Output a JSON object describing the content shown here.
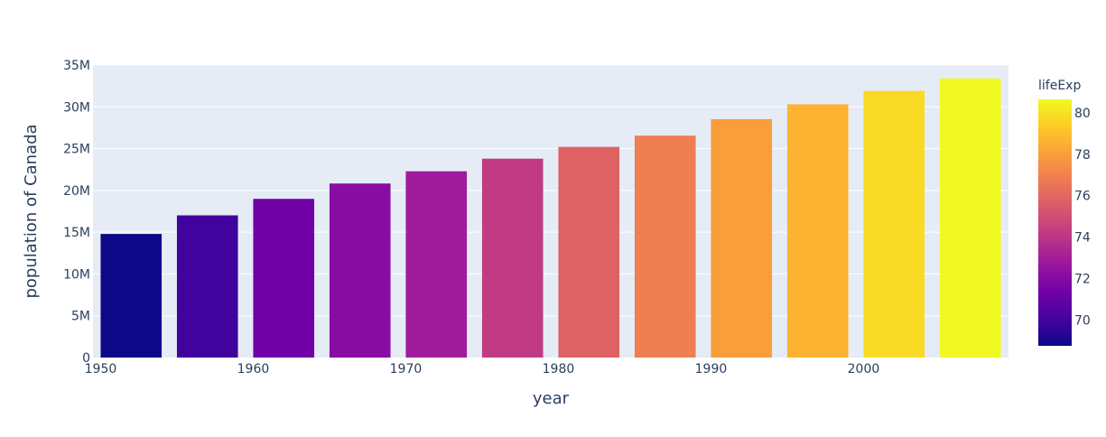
{
  "chart_data": {
    "type": "bar",
    "xlabel": "year",
    "ylabel": "population of Canada",
    "x": [
      1952,
      1957,
      1962,
      1967,
      1972,
      1977,
      1982,
      1987,
      1992,
      1997,
      2002,
      2007
    ],
    "values": [
      14785584,
      17010154,
      18985849,
      20819767,
      22284500,
      23796400,
      25201900,
      26549700,
      28523502,
      30305843,
      31902268,
      33390141
    ],
    "lifeExp": [
      68.75,
      69.96,
      71.3,
      72.13,
      72.88,
      74.21,
      75.76,
      76.86,
      77.95,
      78.61,
      79.77,
      80.653
    ],
    "x_ticks": [
      1950,
      1960,
      1970,
      1980,
      1990,
      2000
    ],
    "x_tick_labels": [
      "1950",
      "1960",
      "1970",
      "1980",
      "1990",
      "2000"
    ],
    "xlim": [
      1949.5,
      2009.5
    ],
    "ylim": [
      0,
      35000000
    ],
    "y_ticks": [
      0,
      5000000,
      10000000,
      15000000,
      20000000,
      25000000,
      30000000,
      35000000
    ],
    "y_tick_labels": [
      "0",
      "5M",
      "10M",
      "15M",
      "20M",
      "25M",
      "30M",
      "35M"
    ],
    "grid": true,
    "colorbar": {
      "title": "lifeExp",
      "range": [
        68.75,
        80.653
      ],
      "ticks": [
        70,
        72,
        74,
        76,
        78,
        80
      ],
      "tick_labels": [
        "70",
        "72",
        "74",
        "76",
        "78",
        "80"
      ],
      "colorscale": [
        "#0d0887",
        "#46039f",
        "#7201a8",
        "#9c179e",
        "#bd3786",
        "#d8576b",
        "#ed7953",
        "#fb9f3a",
        "#fdca26",
        "#f0f921"
      ]
    },
    "colors": {
      "plot_bg": "#e5ecf6",
      "grid": "#ffffff",
      "text": "#2a3f5f"
    }
  }
}
